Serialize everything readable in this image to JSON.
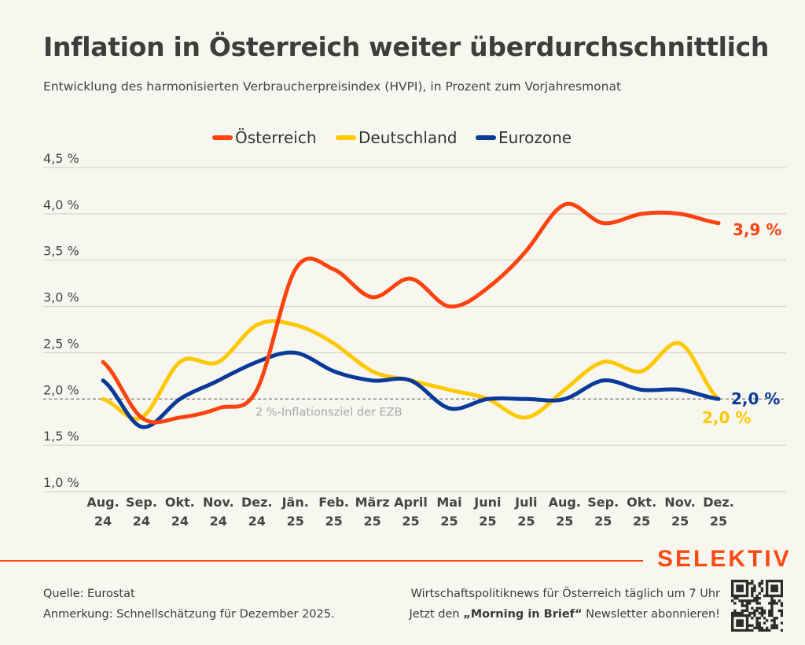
{
  "title": "Inflation in Österreich weiter überdurchschnittlich",
  "subtitle": "Entwicklung des harmonisierten Verbraucherpreisindex (HVPI), in Prozent zum Vorjahresmonat",
  "chart_data": {
    "type": "line",
    "categories": [
      [
        "Aug.",
        "24"
      ],
      [
        "Sep.",
        "24"
      ],
      [
        "Okt.",
        "24"
      ],
      [
        "Nov.",
        "24"
      ],
      [
        "Dez.",
        "24"
      ],
      [
        "Jän.",
        "25"
      ],
      [
        "Feb.",
        "25"
      ],
      [
        "März",
        "25"
      ],
      [
        "April",
        "25"
      ],
      [
        "Mai",
        "25"
      ],
      [
        "Juni",
        "25"
      ],
      [
        "Juli",
        "25"
      ],
      [
        "Aug.",
        "25"
      ],
      [
        "Sep.",
        "25"
      ],
      [
        "Okt.",
        "25"
      ],
      [
        "Nov.",
        "25"
      ],
      [
        "Dez.",
        "25"
      ]
    ],
    "ylim": [
      1.0,
      4.5
    ],
    "yticks": [
      1.0,
      1.5,
      2.0,
      2.5,
      3.0,
      3.5,
      4.0,
      4.5
    ],
    "ytick_labels": [
      "1,0 %",
      "1,5 %",
      "2,0 %",
      "2,5 %",
      "3,0 %",
      "3,5 %",
      "4,0 %",
      "4,5 %"
    ],
    "grid": true,
    "legend_position": "top-center",
    "series": [
      {
        "name": "Österreich",
        "color": "#ff4310",
        "values": [
          2.4,
          1.8,
          1.8,
          1.9,
          2.1,
          3.4,
          3.4,
          3.1,
          3.3,
          3.0,
          3.2,
          3.6,
          4.1,
          3.9,
          4.0,
          4.0,
          3.9
        ],
        "end_label": "3,9 %"
      },
      {
        "name": "Deutschland",
        "color": "#ffc800",
        "values": [
          2.0,
          1.8,
          2.4,
          2.4,
          2.8,
          2.8,
          2.6,
          2.3,
          2.2,
          2.1,
          2.0,
          1.8,
          2.1,
          2.4,
          2.3,
          2.6,
          2.0
        ],
        "end_label": "2,0 %"
      },
      {
        "name": "Eurozone",
        "color": "#0a3a99",
        "values": [
          2.2,
          1.7,
          2.0,
          2.2,
          2.4,
          2.5,
          2.3,
          2.2,
          2.2,
          1.9,
          2.0,
          2.0,
          2.0,
          2.2,
          2.1,
          2.1,
          2.0
        ],
        "end_label": "2,0 %"
      }
    ],
    "reference_line": {
      "value": 2.0,
      "label": "2 %-Inflationsziel der EZB"
    }
  },
  "footer": {
    "source": "Quelle: Eurostat",
    "note": "Anmerkung: Schnellschätzung für Dezember 2025.",
    "promo_line1": "Wirtschaftspolitiknews für Österreich täglich um 7 Uhr",
    "promo_line2_pre": "Jetzt den ",
    "promo_line2_bold": "„Morning in Brief“",
    "promo_line2_post": " Newsletter abonnieren!",
    "brand": "SELEKTIV",
    "qr_icon": "qr-code-icon"
  }
}
